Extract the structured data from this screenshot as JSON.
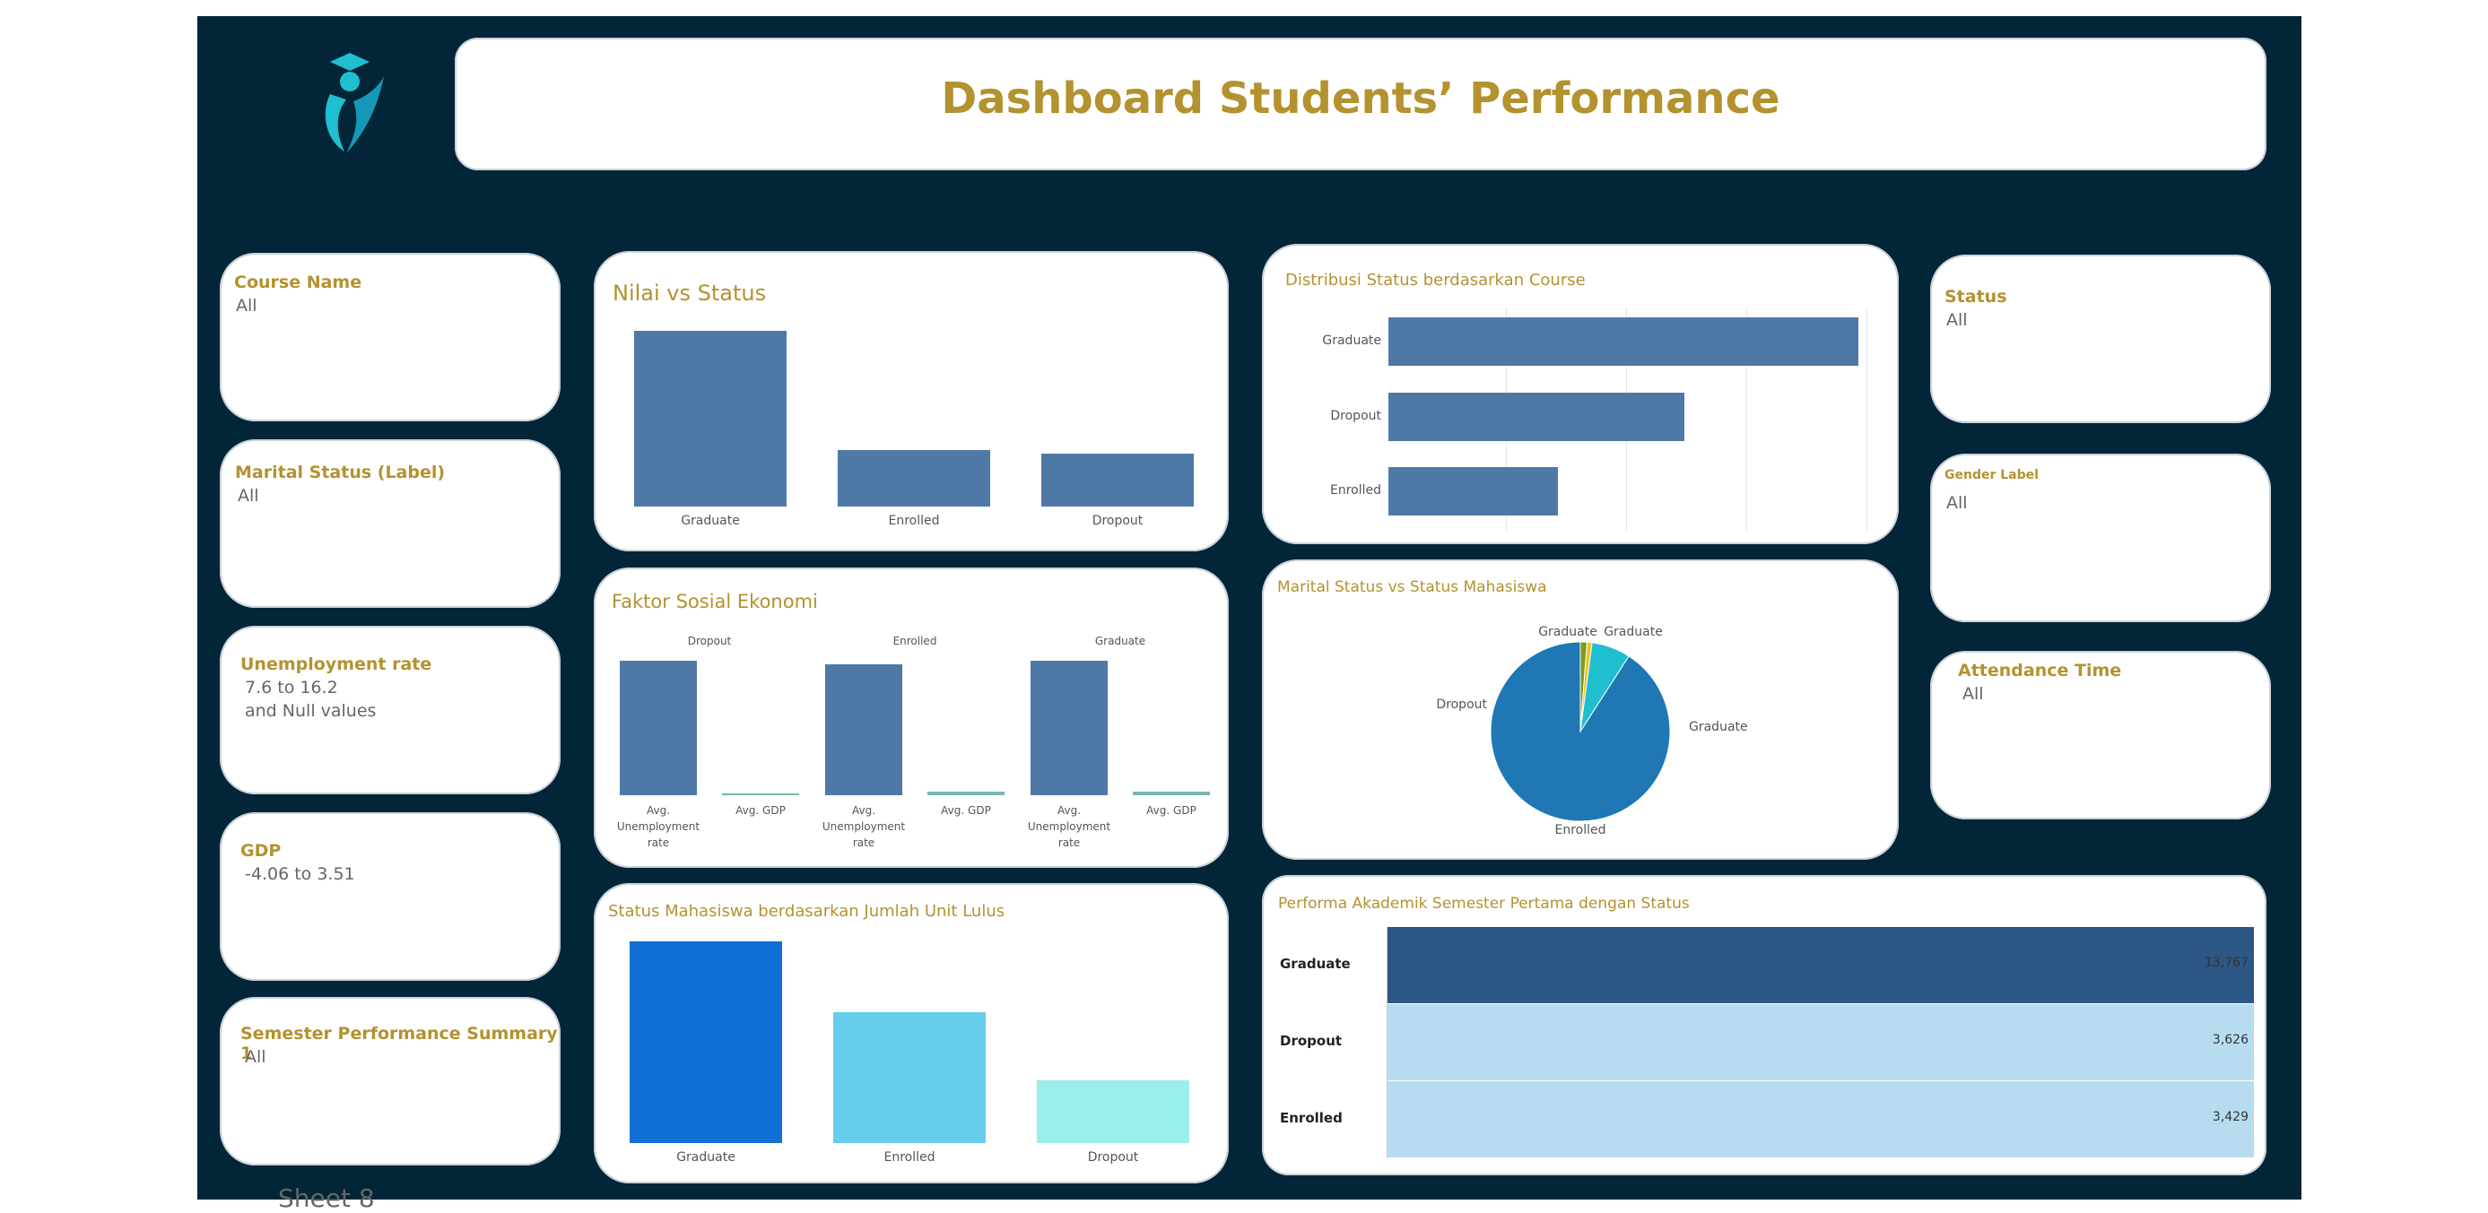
{
  "header": {
    "title": "Dashboard Students’ Performance",
    "logo_icon": "student-graduate-logo"
  },
  "filters_left": [
    {
      "label": "Course Name",
      "value": "All"
    },
    {
      "label": "Marital Status (Label)",
      "value": "All"
    },
    {
      "label": "Unemployment rate",
      "value": "7.6 to 16.2",
      "value2": "and Null values"
    },
    {
      "label": "GDP",
      "value": "-4.06 to 3.51"
    },
    {
      "label": "Semester Performance Summary 1",
      "value": "All"
    }
  ],
  "filters_right": [
    {
      "label": "Status",
      "value": "All"
    },
    {
      "label": "Gender Label",
      "value": "All"
    },
    {
      "label": "Attendance Time",
      "value": "All"
    }
  ],
  "charts": {
    "nilai": {
      "title": "Nilai vs Status"
    },
    "sosial": {
      "title": "Faktor Sosial Ekonomi"
    },
    "unit": {
      "title": "Status Mahasiswa berdasarkan Jumlah Unit Lulus"
    },
    "distribusi": {
      "title": "Distribusi Status berdasarkan Course"
    },
    "marital": {
      "title": "Marital Status vs Status Mahasiswa"
    },
    "performa": {
      "title": "Performa Akademik Semester Pertama dengan Status"
    }
  },
  "footer": {
    "sheet_label": "Sheet 8"
  },
  "colors": {
    "background": "#022537",
    "accent": "#b3922f",
    "bar": "#4e79a7"
  },
  "chart_data": [
    {
      "id": "nilai",
      "type": "bar",
      "categories": [
        "Graduate",
        "Enrolled",
        "Dropout"
      ],
      "values": [
        100,
        32,
        30
      ]
    },
    {
      "id": "sosial",
      "type": "bar",
      "groups": [
        "Dropout",
        "Enrolled",
        "Graduate"
      ],
      "categories": [
        "Avg. Unemployment rate",
        "Avg. GDP"
      ],
      "series": [
        {
          "values": [
            11.6,
            0.1
          ]
        },
        {
          "values": [
            11.3,
            0.3
          ]
        },
        {
          "values": [
            11.6,
            0.3
          ]
        }
      ]
    },
    {
      "id": "unit",
      "type": "bar",
      "categories": [
        "Graduate",
        "Enrolled",
        "Dropout"
      ],
      "values": [
        100,
        65,
        31
      ],
      "colors": [
        "#1170d4",
        "#66cdeb",
        "#9aefec"
      ]
    },
    {
      "id": "distribusi",
      "type": "bar",
      "orientation": "horizontal",
      "categories": [
        "Graduate",
        "Dropout",
        "Enrolled"
      ],
      "values": [
        100,
        63,
        36
      ]
    },
    {
      "id": "marital",
      "type": "pie",
      "slices": [
        {
          "label": "Graduate",
          "value": 1.2,
          "color": "#7a9a1f"
        },
        {
          "label": "Graduate",
          "value": 0.9,
          "color": "#f0c419"
        },
        {
          "label": "Dropout",
          "value": 7.0,
          "color": "#1fbfd1"
        },
        {
          "label": "Graduate",
          "value": 90.9,
          "color": "#1f77b4"
        }
      ],
      "extra_labels": [
        "Enrolled"
      ]
    },
    {
      "id": "performa",
      "type": "table",
      "rows": [
        {
          "label": "Graduate",
          "value": "13,767",
          "color": "#2c5784"
        },
        {
          "label": "Dropout",
          "value": "3,626",
          "color": "#b7dcef"
        },
        {
          "label": "Enrolled",
          "value": "3,429",
          "color": "#b7dcef"
        }
      ]
    }
  ]
}
